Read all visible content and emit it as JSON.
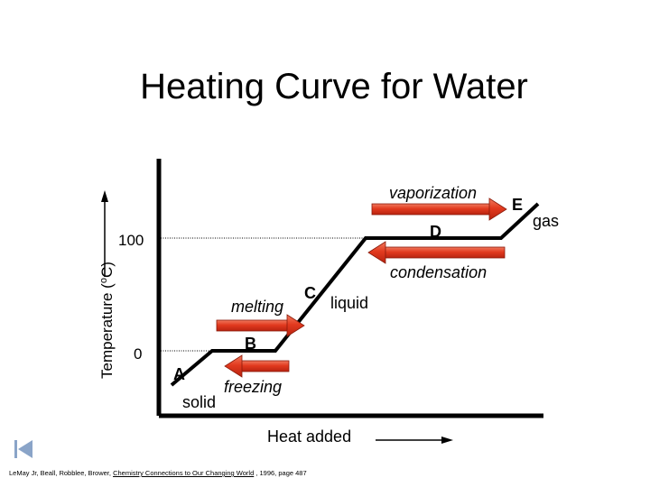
{
  "title": "Heating Curve for Water",
  "axes": {
    "y_label": "Temperature (",
    "y_label_sup": "o",
    "y_label_end": "C)",
    "x_label": "Heat added",
    "tick_100": "100",
    "tick_0": "0"
  },
  "points": {
    "A": "A",
    "B": "B",
    "C": "C",
    "D": "D",
    "E": "E"
  },
  "phases": {
    "solid": "solid",
    "liquid": "liquid",
    "gas": "gas"
  },
  "transitions": {
    "melting": "melting",
    "freezing": "freezing",
    "vaporization": "vaporization",
    "condensation": "condensation"
  },
  "citation": {
    "authors": "LeMay Jr, Beall, Robblee, Brower, ",
    "book": "Chemistry Connections to Our Changing World",
    "rest": " , 1996, page 487"
  },
  "colors": {
    "arrow_red": "#e23a1f",
    "curve": "#000000",
    "nav_icon": "#8aa4c8"
  },
  "icons": {
    "nav": "skip-back-icon"
  }
}
